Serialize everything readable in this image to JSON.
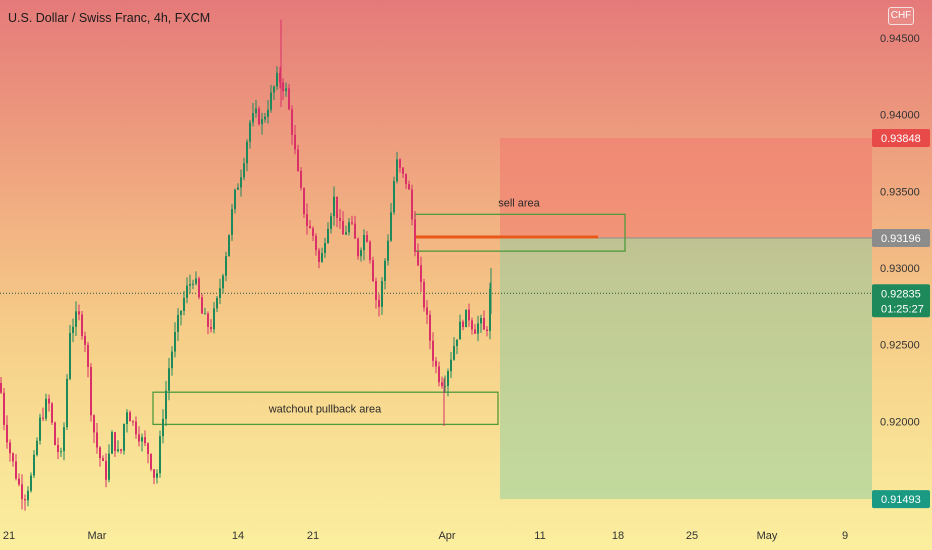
{
  "header": {
    "title": "U.S. Dollar / Swiss Franc, 4h, FXCM",
    "currency_badge": "CHF"
  },
  "colors": {
    "bull": "#1e8a5b",
    "bear": "#d9306a",
    "zone_border": "#4f9a3b",
    "short_stop_fill": "rgba(240,120,110,0.55)",
    "short_target_fill": "rgba(150,205,160,0.55)",
    "tag_red": "#e84a4a",
    "tag_gray": "#8c8c8c",
    "tag_green": "#1e8a5b",
    "tag_teal": "#1a9a82",
    "entry_line": "#e8581a"
  },
  "chart_data": {
    "type": "candlestick",
    "ylim": [
      0.915,
      0.9465
    ],
    "yticks": [
      "0.94500",
      "0.94000",
      "0.93500",
      "0.93000",
      "0.92500",
      "0.92000"
    ],
    "x_ticks": [
      "21",
      "Mar",
      "14",
      "21",
      "Apr",
      "11",
      "18",
      "25",
      "May",
      "9"
    ],
    "visible_price_levels": {
      "stop_price": {
        "label": "0.93848",
        "value": 0.93848
      },
      "entry_price": {
        "label": "0.93196",
        "value": 0.93196
      },
      "current_price": {
        "label": "0.92835",
        "value": 0.92835,
        "countdown": "01:25:27"
      },
      "target_price": {
        "label": "0.91493",
        "value": 0.91493
      }
    },
    "annotations": [
      {
        "text": "sell area",
        "price_low": 0.9311,
        "price_high": 0.9335
      },
      {
        "text": "watchout pullback area",
        "price_low": 0.9198,
        "price_high": 0.9219
      }
    ],
    "price_path": [
      [
        0,
        0.9225
      ],
      [
        4,
        0.92
      ],
      [
        10,
        0.918
      ],
      [
        18,
        0.916
      ],
      [
        24,
        0.915
      ],
      [
        32,
        0.9165
      ],
      [
        40,
        0.92
      ],
      [
        48,
        0.9215
      ],
      [
        55,
        0.9185
      ],
      [
        62,
        0.9175
      ],
      [
        70,
        0.926
      ],
      [
        78,
        0.927
      ],
      [
        86,
        0.925
      ],
      [
        92,
        0.92
      ],
      [
        98,
        0.918
      ],
      [
        106,
        0.9165
      ],
      [
        112,
        0.919
      ],
      [
        120,
        0.9175
      ],
      [
        126,
        0.921
      ],
      [
        132,
        0.92
      ],
      [
        140,
        0.919
      ],
      [
        148,
        0.918
      ],
      [
        156,
        0.916
      ],
      [
        162,
        0.92
      ],
      [
        170,
        0.924
      ],
      [
        178,
        0.9265
      ],
      [
        186,
        0.9285
      ],
      [
        194,
        0.9295
      ],
      [
        202,
        0.927
      ],
      [
        210,
        0.926
      ],
      [
        218,
        0.928
      ],
      [
        226,
        0.931
      ],
      [
        234,
        0.9345
      ],
      [
        242,
        0.9365
      ],
      [
        250,
        0.9395
      ],
      [
        256,
        0.94
      ],
      [
        262,
        0.9395
      ],
      [
        270,
        0.941
      ],
      [
        278,
        0.9425
      ],
      [
        286,
        0.9415
      ],
      [
        292,
        0.939
      ],
      [
        298,
        0.936
      ],
      [
        306,
        0.933
      ],
      [
        314,
        0.932
      ],
      [
        320,
        0.93
      ],
      [
        326,
        0.9325
      ],
      [
        334,
        0.9345
      ],
      [
        342,
        0.932
      ],
      [
        350,
        0.933
      ],
      [
        358,
        0.931
      ],
      [
        366,
        0.9325
      ],
      [
        372,
        0.93
      ],
      [
        378,
        0.927
      ],
      [
        384,
        0.93
      ],
      [
        390,
        0.933
      ],
      [
        396,
        0.937
      ],
      [
        402,
        0.936
      ],
      [
        408,
        0.9355
      ],
      [
        414,
        0.932
      ],
      [
        420,
        0.929
      ],
      [
        426,
        0.927
      ],
      [
        432,
        0.9245
      ],
      [
        438,
        0.923
      ],
      [
        444,
        0.9225
      ],
      [
        450,
        0.924
      ],
      [
        456,
        0.9255
      ],
      [
        462,
        0.9265
      ],
      [
        468,
        0.927
      ],
      [
        474,
        0.926
      ],
      [
        480,
        0.9265
      ],
      [
        486,
        0.9255
      ],
      [
        490,
        0.9284
      ]
    ]
  }
}
